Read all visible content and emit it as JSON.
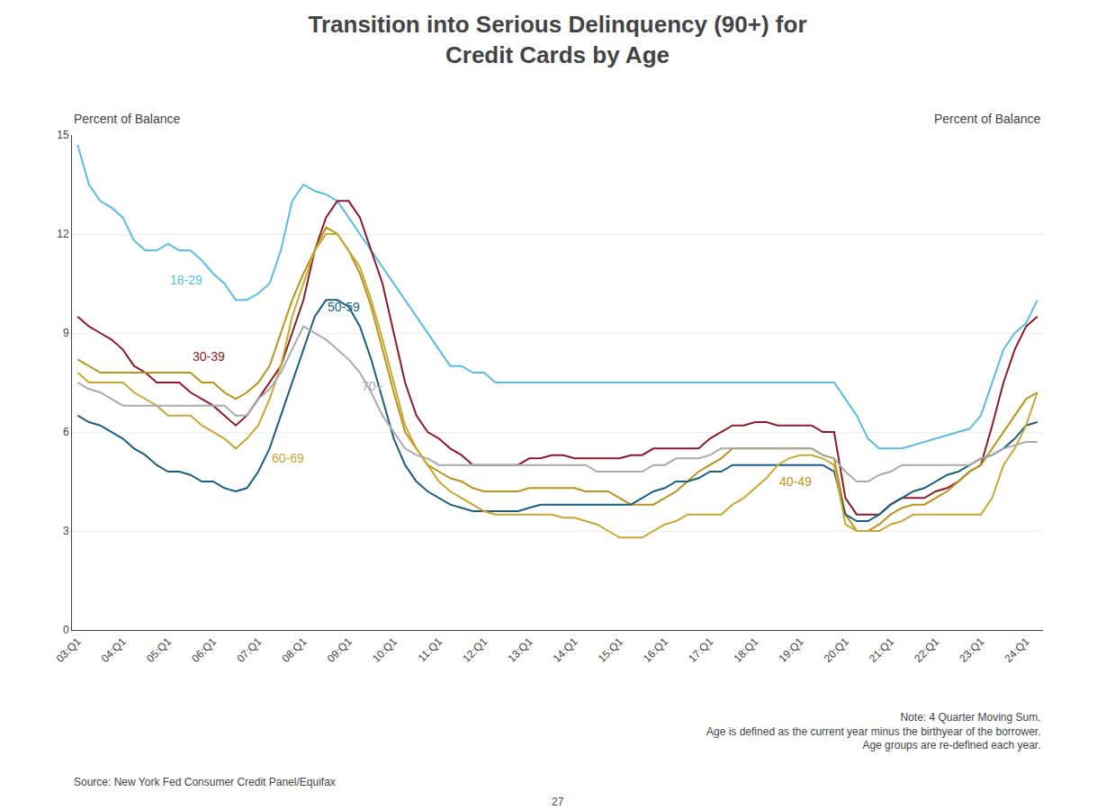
{
  "chart_data": {
    "type": "line",
    "title": "Transition into Serious Delinquency (90+) for\nCredit Cards by Age",
    "ylabel": "Percent of Balance",
    "y2label": "Percent of Balance",
    "source": "Source: New York Fed Consumer Credit Panel/Equifax",
    "note": "Note: 4 Quarter Moving Sum.\nAge is defined as the current year minus the birthyear of the borrower.\nAge groups are re-defined each year.",
    "page_number": "27",
    "ylim": [
      0,
      15
    ],
    "yticks": [
      0,
      3,
      6,
      9,
      12,
      15
    ],
    "y2lim": [
      0,
      15
    ],
    "y2ticks": [
      0,
      3,
      6,
      9,
      12,
      15
    ],
    "grid": true,
    "categories": [
      "03:Q1",
      null,
      null,
      null,
      "04:Q1",
      null,
      null,
      null,
      "05:Q1",
      null,
      null,
      null,
      "06:Q1",
      null,
      null,
      null,
      "07:Q1",
      null,
      null,
      null,
      "08:Q1",
      null,
      null,
      null,
      "09:Q1",
      null,
      null,
      null,
      "10:Q1",
      null,
      null,
      null,
      "11:Q1",
      null,
      null,
      null,
      "12:Q1",
      null,
      null,
      null,
      "13:Q1",
      null,
      null,
      null,
      "14:Q1",
      null,
      null,
      null,
      "15:Q1",
      null,
      null,
      null,
      "16:Q1",
      null,
      null,
      null,
      "17:Q1",
      null,
      null,
      null,
      "18:Q1",
      null,
      null,
      null,
      "19:Q1",
      null,
      null,
      null,
      "20:Q1",
      null,
      null,
      null,
      "21:Q1",
      null,
      null,
      null,
      "22:Q1",
      null,
      null,
      null,
      "23:Q1",
      null,
      null,
      null,
      "24:Q1",
      null
    ],
    "series": [
      {
        "name": "18-29",
        "color": "#5bbce4",
        "values": [
          14.7,
          13.5,
          13.0,
          12.8,
          12.5,
          11.8,
          11.5,
          11.5,
          11.7,
          11.5,
          11.5,
          11.2,
          10.8,
          10.5,
          10.0,
          10.0,
          10.2,
          10.5,
          11.5,
          13.0,
          13.5,
          13.3,
          13.2,
          13.0,
          12.5,
          12.0,
          11.5,
          11.0,
          10.5,
          10.0,
          9.5,
          9.0,
          8.5,
          8.0,
          8.0,
          7.8,
          7.8,
          7.5,
          7.5,
          7.5,
          7.5,
          7.5,
          7.5,
          7.5,
          7.5,
          7.5,
          7.5,
          7.5,
          7.5,
          7.5,
          7.5,
          7.5,
          7.5,
          7.5,
          7.5,
          7.5,
          7.5,
          7.5,
          7.5,
          7.5,
          7.5,
          7.5,
          7.5,
          7.5,
          7.5,
          7.5,
          7.5,
          7.5,
          7.0,
          6.5,
          5.8,
          5.5,
          5.5,
          5.5,
          5.6,
          5.7,
          5.8,
          5.9,
          6.0,
          6.1,
          6.5,
          7.5,
          8.5,
          9.0,
          9.3,
          10.0
        ]
      },
      {
        "name": "30-39",
        "color": "#8b1a2a",
        "values": [
          9.5,
          9.2,
          9.0,
          8.8,
          8.5,
          8.0,
          7.8,
          7.5,
          7.5,
          7.5,
          7.2,
          7.0,
          6.8,
          6.5,
          6.2,
          6.5,
          7.0,
          7.5,
          8.0,
          9.0,
          10.0,
          11.5,
          12.5,
          13.0,
          13.0,
          12.5,
          11.5,
          10.5,
          9.0,
          7.5,
          6.5,
          6.0,
          5.8,
          5.5,
          5.3,
          5.0,
          5.0,
          5.0,
          5.0,
          5.0,
          5.2,
          5.2,
          5.3,
          5.3,
          5.2,
          5.2,
          5.2,
          5.2,
          5.2,
          5.3,
          5.3,
          5.5,
          5.5,
          5.5,
          5.5,
          5.5,
          5.8,
          6.0,
          6.2,
          6.2,
          6.3,
          6.3,
          6.2,
          6.2,
          6.2,
          6.2,
          6.0,
          6.0,
          4.0,
          3.5,
          3.5,
          3.5,
          3.8,
          4.0,
          4.0,
          4.0,
          4.2,
          4.3,
          4.5,
          4.8,
          5.0,
          6.2,
          7.5,
          8.5,
          9.2,
          9.5
        ]
      },
      {
        "name": "40-49",
        "color": "#b8941a",
        "values": [
          8.2,
          8.0,
          7.8,
          7.8,
          7.8,
          7.8,
          7.8,
          7.8,
          7.8,
          7.8,
          7.8,
          7.5,
          7.5,
          7.2,
          7.0,
          7.2,
          7.5,
          8.0,
          9.0,
          10.0,
          10.8,
          11.5,
          12.2,
          12.0,
          11.5,
          10.8,
          9.8,
          8.5,
          7.2,
          6.0,
          5.5,
          5.0,
          4.8,
          4.6,
          4.5,
          4.3,
          4.2,
          4.2,
          4.2,
          4.2,
          4.3,
          4.3,
          4.3,
          4.3,
          4.3,
          4.2,
          4.2,
          4.2,
          4.0,
          3.8,
          3.8,
          3.8,
          4.0,
          4.2,
          4.5,
          4.8,
          5.0,
          5.2,
          5.5,
          5.5,
          5.5,
          5.5,
          5.5,
          5.5,
          5.5,
          5.5,
          5.3,
          5.2,
          3.5,
          3.0,
          3.0,
          3.2,
          3.5,
          3.7,
          3.8,
          3.8,
          4.0,
          4.2,
          4.5,
          4.8,
          5.0,
          5.5,
          6.0,
          6.5,
          7.0,
          7.2
        ]
      },
      {
        "name": "50-59",
        "color": "#1a5f80",
        "values": [
          6.5,
          6.3,
          6.2,
          6.0,
          5.8,
          5.5,
          5.3,
          5.0,
          4.8,
          4.8,
          4.7,
          4.5,
          4.5,
          4.3,
          4.2,
          4.3,
          4.8,
          5.5,
          6.5,
          7.5,
          8.5,
          9.5,
          10.0,
          10.0,
          9.8,
          9.2,
          8.2,
          7.0,
          5.8,
          5.0,
          4.5,
          4.2,
          4.0,
          3.8,
          3.7,
          3.6,
          3.6,
          3.6,
          3.6,
          3.6,
          3.7,
          3.8,
          3.8,
          3.8,
          3.8,
          3.8,
          3.8,
          3.8,
          3.8,
          3.8,
          4.0,
          4.2,
          4.3,
          4.5,
          4.5,
          4.6,
          4.8,
          4.8,
          5.0,
          5.0,
          5.0,
          5.0,
          5.0,
          5.0,
          5.0,
          5.0,
          5.0,
          4.8,
          3.5,
          3.3,
          3.3,
          3.5,
          3.8,
          4.0,
          4.2,
          4.3,
          4.5,
          4.7,
          4.8,
          5.0,
          5.2,
          5.3,
          5.5,
          5.8,
          6.2,
          6.3
        ]
      },
      {
        "name": "60-69",
        "color": "#c8a830",
        "values": [
          7.8,
          7.5,
          7.5,
          7.5,
          7.5,
          7.2,
          7.0,
          6.8,
          6.5,
          6.5,
          6.5,
          6.2,
          6.0,
          5.8,
          5.5,
          5.8,
          6.2,
          7.0,
          8.0,
          9.5,
          10.5,
          11.5,
          12.0,
          12.0,
          11.5,
          11.0,
          10.0,
          8.8,
          7.5,
          6.2,
          5.5,
          5.0,
          4.5,
          4.2,
          4.0,
          3.8,
          3.6,
          3.5,
          3.5,
          3.5,
          3.5,
          3.5,
          3.5,
          3.4,
          3.4,
          3.3,
          3.2,
          3.0,
          2.8,
          2.8,
          2.8,
          3.0,
          3.2,
          3.3,
          3.5,
          3.5,
          3.5,
          3.5,
          3.8,
          4.0,
          4.3,
          4.6,
          5.0,
          5.2,
          5.3,
          5.3,
          5.2,
          5.0,
          3.2,
          3.0,
          3.0,
          3.0,
          3.2,
          3.3,
          3.5,
          3.5,
          3.5,
          3.5,
          3.5,
          3.5,
          3.5,
          4.0,
          5.0,
          5.5,
          6.2,
          7.2
        ]
      },
      {
        "name": "70+",
        "color": "#aaaaaa",
        "values": [
          7.5,
          7.3,
          7.2,
          7.0,
          6.8,
          6.8,
          6.8,
          6.8,
          6.8,
          6.8,
          6.8,
          6.8,
          6.8,
          6.8,
          6.5,
          6.5,
          7.0,
          7.3,
          7.8,
          8.5,
          9.2,
          9.0,
          8.8,
          8.5,
          8.2,
          7.8,
          7.2,
          6.5,
          6.0,
          5.5,
          5.3,
          5.2,
          5.0,
          5.0,
          5.0,
          5.0,
          5.0,
          5.0,
          5.0,
          5.0,
          5.0,
          5.0,
          5.0,
          5.0,
          5.0,
          5.0,
          4.8,
          4.8,
          4.8,
          4.8,
          4.8,
          5.0,
          5.0,
          5.2,
          5.2,
          5.2,
          5.3,
          5.5,
          5.5,
          5.5,
          5.5,
          5.5,
          5.5,
          5.5,
          5.5,
          5.5,
          5.3,
          5.2,
          4.8,
          4.5,
          4.5,
          4.7,
          4.8,
          5.0,
          5.0,
          5.0,
          5.0,
          5.0,
          5.0,
          5.0,
          5.2,
          5.3,
          5.5,
          5.6,
          5.7,
          5.7
        ]
      }
    ],
    "annotations": [
      {
        "text": "18-29",
        "x": 8,
        "y": 10.6,
        "color": "#5bbce4"
      },
      {
        "text": "30-39",
        "x": 10,
        "y": 8.3,
        "color": "#8b1a2a"
      },
      {
        "text": "50-59",
        "x": 22,
        "y": 9.8,
        "color": "#1a5f80"
      },
      {
        "text": "70+",
        "x": 25,
        "y": 7.4,
        "color": "#aaaaaa"
      },
      {
        "text": "60-69",
        "x": 17,
        "y": 5.2,
        "color": "#c8a830"
      },
      {
        "text": "40-49",
        "x": 62,
        "y": 4.5,
        "color": "#b8941a"
      }
    ]
  }
}
